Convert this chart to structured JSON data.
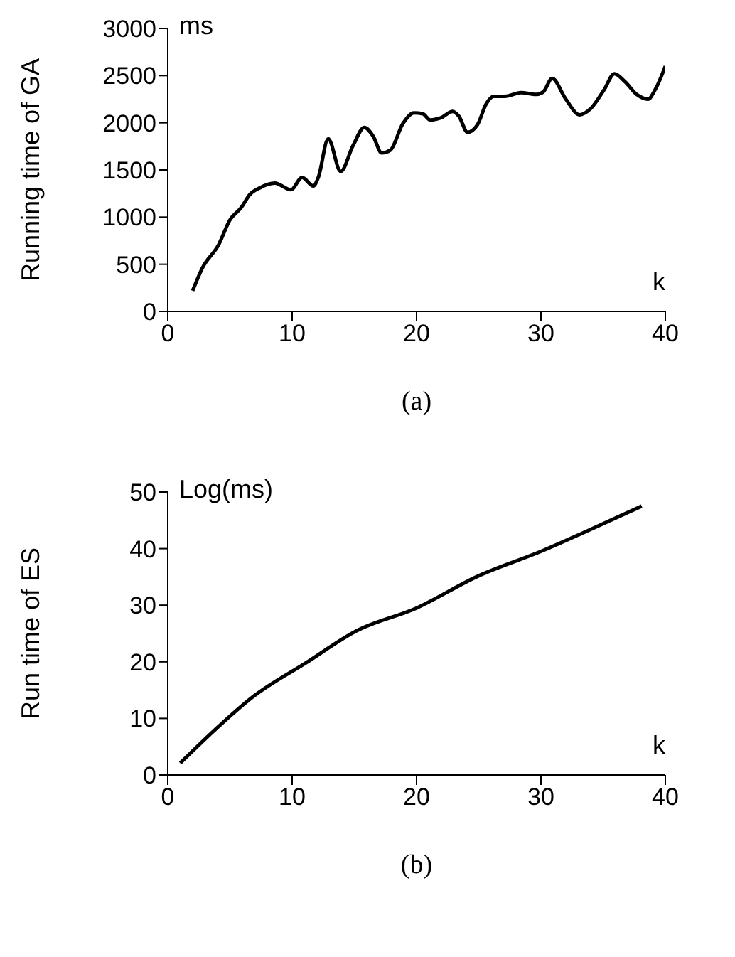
{
  "chart_data": [
    {
      "type": "line",
      "title": "(a)",
      "xlabel": "k",
      "ylabel": "Running time of GA",
      "annotations": [
        "ms"
      ],
      "grid": false,
      "legend": false,
      "marker": "none",
      "line_style": "solid",
      "xlim": [
        0,
        40
      ],
      "xticks": [
        0,
        10,
        20,
        30,
        40
      ],
      "ylim": [
        0,
        3000
      ],
      "yticks": [
        0,
        500,
        1000,
        1500,
        2000,
        2500,
        3000
      ],
      "series": [
        {
          "color": "#000000",
          "x": [
            2,
            2.8,
            4.1,
            5,
            5.9,
            6.6,
            7.4,
            8.6,
            9.9,
            10.8,
            11.7,
            12.1,
            12.9,
            13.9,
            14.9,
            15.8,
            16.5,
            17.2,
            17.9,
            18.9,
            19.8,
            20.5,
            21.1,
            22,
            22.9,
            23.4,
            24.1,
            24.9,
            25.6,
            26.2,
            27.1,
            28.4,
            29.6,
            30.2,
            30.9,
            32,
            33.1,
            34,
            35.1,
            35.9,
            36.8,
            37.7,
            38.6,
            39.2,
            40
          ],
          "values": [
            220,
            465,
            710,
            970,
            1100,
            1240,
            1310,
            1360,
            1290,
            1420,
            1330,
            1420,
            1830,
            1485,
            1760,
            1950,
            1860,
            1680,
            1710,
            1990,
            2105,
            2095,
            2030,
            2055,
            2120,
            2070,
            1900,
            1980,
            2200,
            2280,
            2280,
            2320,
            2300,
            2330,
            2470,
            2250,
            2085,
            2150,
            2355,
            2520,
            2430,
            2300,
            2250,
            2355,
            2600
          ]
        }
      ]
    },
    {
      "type": "line",
      "title": "(b)",
      "xlabel": "k",
      "ylabel": "Run time of ES",
      "annotations": [
        "Log(ms)"
      ],
      "grid": false,
      "legend": false,
      "marker": "none",
      "line_style": "solid",
      "xlim": [
        0,
        40
      ],
      "xticks": [
        0,
        10,
        20,
        30,
        40
      ],
      "ylim": [
        0,
        50
      ],
      "yticks": [
        0,
        10,
        20,
        30,
        40,
        50
      ],
      "series": [
        {
          "color": "#000000",
          "x": [
            1,
            3.8,
            6.9,
            11.1,
            15.2,
            20,
            24.9,
            30.1,
            33.6,
            38.1
          ],
          "values": [
            2.1,
            8,
            13.9,
            19.8,
            25.5,
            29.5,
            35.1,
            39.6,
            43,
            47.5
          ]
        }
      ]
    }
  ]
}
